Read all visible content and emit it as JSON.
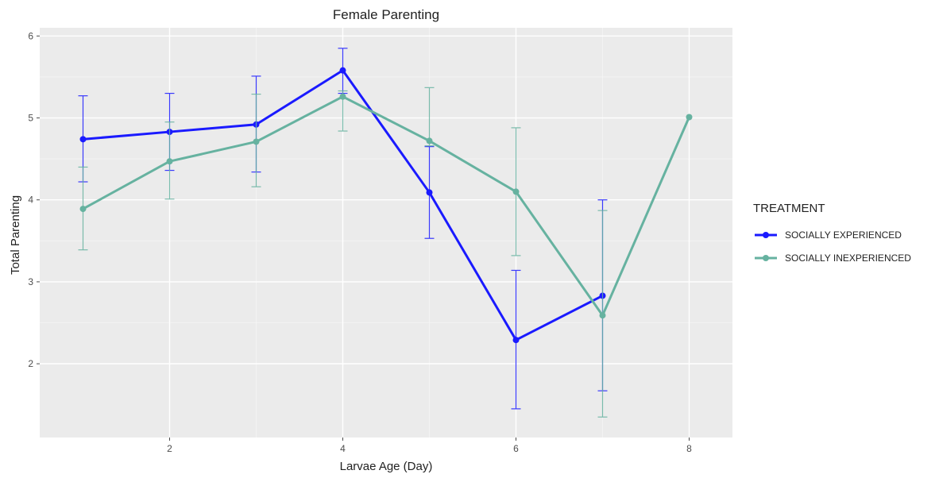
{
  "chart_data": {
    "type": "line",
    "title": "Female Parenting",
    "xlabel": "Larvae Age (Day)",
    "ylabel": "Total Parenting",
    "xlim": [
      0.5,
      8.5
    ],
    "ylim": [
      1.1,
      6.1
    ],
    "x_ticks": [
      2,
      4,
      6,
      8
    ],
    "y_ticks": [
      2,
      3,
      4,
      5,
      6
    ],
    "grid": true,
    "legend": {
      "title": "TREATMENT",
      "position": "right"
    },
    "series": [
      {
        "name": "SOCIALLY EXPERIENCED",
        "color": "#1a1aff",
        "points": [
          {
            "x": 1,
            "y": 4.74,
            "lo": 4.22,
            "hi": 5.27
          },
          {
            "x": 2,
            "y": 4.83,
            "lo": 4.36,
            "hi": 5.3
          },
          {
            "x": 3,
            "y": 4.92,
            "lo": 4.34,
            "hi": 5.51
          },
          {
            "x": 4,
            "y": 5.58,
            "lo": 5.3,
            "hi": 5.85
          },
          {
            "x": 5,
            "y": 4.09,
            "lo": 3.53,
            "hi": 4.65
          },
          {
            "x": 6,
            "y": 2.29,
            "lo": 1.45,
            "hi": 3.14
          },
          {
            "x": 7,
            "y": 2.83,
            "lo": 1.67,
            "hi": 4.0
          }
        ]
      },
      {
        "name": "SOCIALLY INEXPERIENCED",
        "color": "#66b2a0",
        "points": [
          {
            "x": 1,
            "y": 3.89,
            "lo": 3.39,
            "hi": 4.4
          },
          {
            "x": 2,
            "y": 4.47,
            "lo": 4.01,
            "hi": 4.95
          },
          {
            "x": 3,
            "y": 4.71,
            "lo": 4.16,
            "hi": 5.29
          },
          {
            "x": 4,
            "y": 5.26,
            "lo": 4.84,
            "hi": 5.33
          },
          {
            "x": 5,
            "y": 4.72,
            "lo": 4.66,
            "hi": 5.37
          },
          {
            "x": 6,
            "y": 4.1,
            "lo": 3.32,
            "hi": 4.88
          },
          {
            "x": 7,
            "y": 2.59,
            "lo": 1.35,
            "hi": 3.87
          },
          {
            "x": 8,
            "y": 5.01,
            "lo": null,
            "hi": null
          }
        ]
      }
    ]
  }
}
